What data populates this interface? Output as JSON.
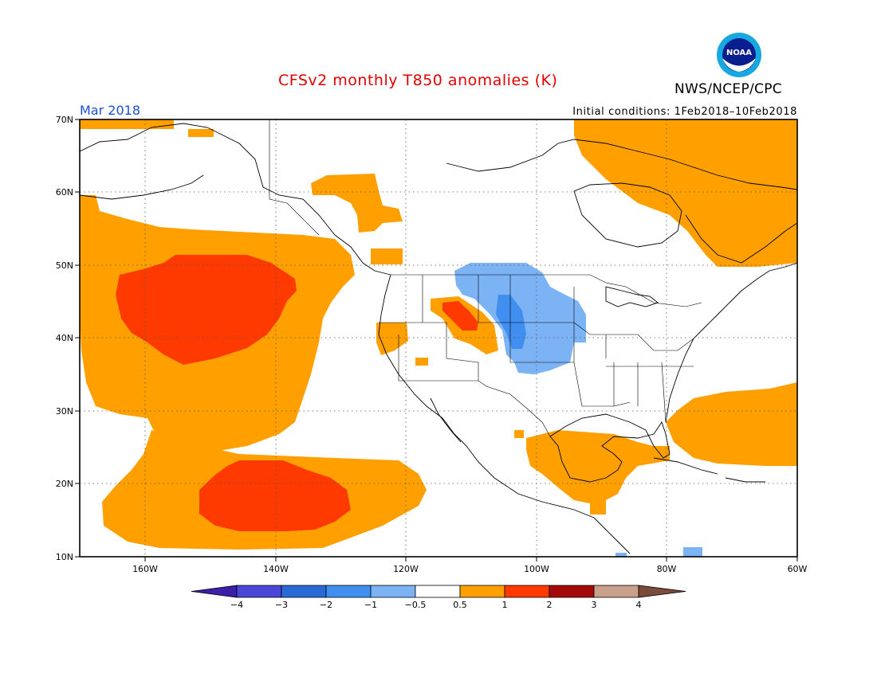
{
  "title": "CFSv2 monthly T850 anomalies (K)",
  "agency": "NWS/NCEP/CPC",
  "logo_text": "NOAA",
  "valid_month": "Mar 2018",
  "initial_conditions": "Initial conditions: 1Feb2018–10Feb2018",
  "map": {
    "projection": "lat-lon",
    "lon_range": [
      -172,
      -60
    ],
    "lat_range": [
      10,
      70
    ],
    "lat_labels": [
      "70N",
      "60N",
      "50N",
      "40N",
      "30N",
      "20N",
      "10N"
    ],
    "lon_labels": [
      "160W",
      "140W",
      "120W",
      "100W",
      "80W",
      "60W"
    ],
    "grid": true
  },
  "colorbar": {
    "labels": [
      "−4",
      "−3",
      "−2",
      "−1",
      "−0.5",
      "0.5",
      "1",
      "2",
      "3",
      "4"
    ],
    "colors": [
      "#3b1fa8",
      "#4a47d8",
      "#2a6ad6",
      "#3f8ef0",
      "#7bb3f5",
      "#ffffff",
      "#ffa000",
      "#ff3a00",
      "#a50a0a",
      "#c8a08c",
      "#7a4a3a"
    ]
  }
}
